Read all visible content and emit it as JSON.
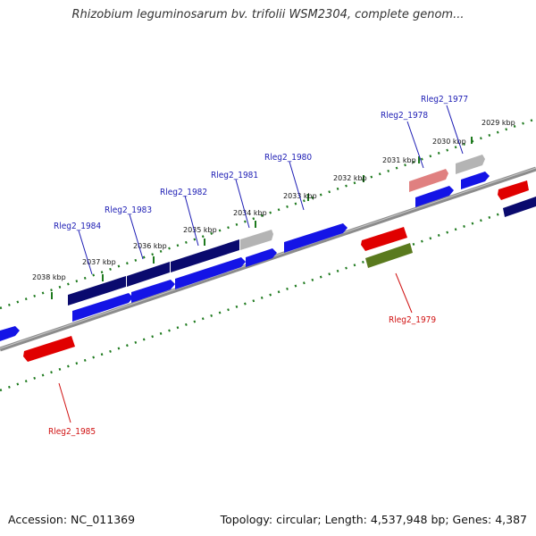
{
  "title": "Rhizobium leguminosarum bv. trifolii WSM2304, complete genom...",
  "footer": {
    "accession": "Accession: NC_011369",
    "summary": "Topology: circular; Length: 4,537,948 bp; Genes: 4,387"
  },
  "colors": {
    "backbone": "#8c8c8c",
    "tick": "#1e7a1e",
    "label_forward": "#1c1cb4",
    "label_reverse": "#d01010",
    "gene_navy": "#0a0a6e",
    "gene_blue": "#1414e6",
    "gene_red": "#e00000",
    "gene_pink": "#e08080",
    "gene_grey": "#b4b4b4",
    "gene_olive": "#5a7a1e"
  },
  "kbp_labels": [
    "2029 kbp",
    "2030 kbp",
    "2031 kbp",
    "2032 kbp",
    "2033 kbp",
    "2034 kbp",
    "2035 kbp",
    "2036 kbp",
    "2037 kbp",
    "2038 kbp"
  ],
  "gene_labels": {
    "forward": [
      "Rleg2_1977",
      "Rleg2_1978",
      "Rleg2_1980",
      "Rleg2_1981",
      "Rleg2_1982",
      "Rleg2_1983",
      "Rleg2_1984"
    ],
    "reverse": [
      "Rleg2_1979",
      "Rleg2_1985"
    ]
  }
}
